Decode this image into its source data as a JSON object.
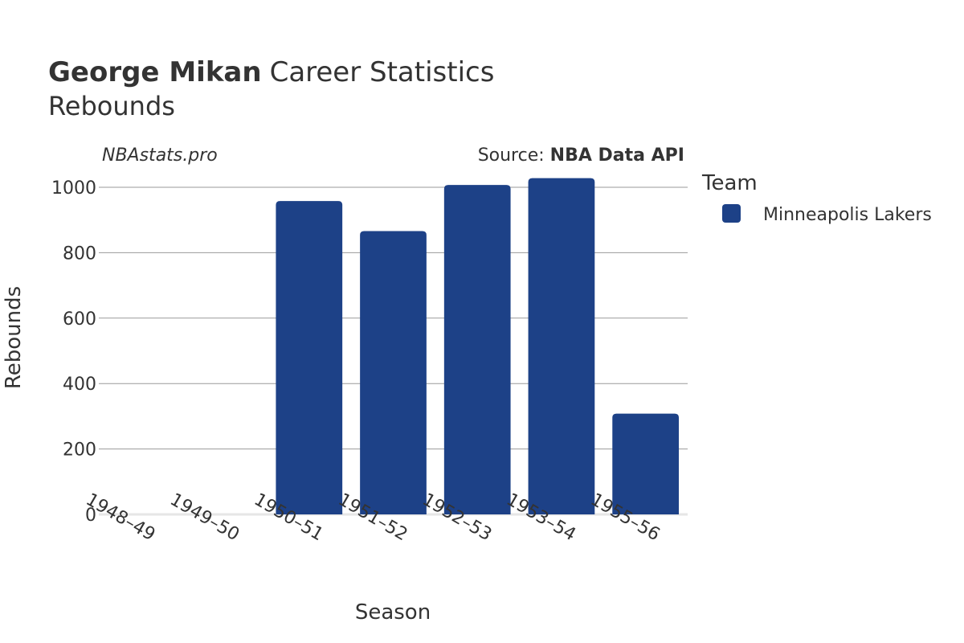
{
  "title": {
    "player": "George Mikan",
    "rest": "Career Statistics"
  },
  "subtitle": "Rebounds",
  "watermark": "NBAstats.pro",
  "source": {
    "prefix": "Source: ",
    "name": "NBA Data API"
  },
  "legend": {
    "title": "Team",
    "items": [
      {
        "label": "Minneapolis Lakers",
        "color": "#1d4187"
      }
    ]
  },
  "chart_data": {
    "type": "bar",
    "categories": [
      "1948–49",
      "1949–50",
      "1950–51",
      "1951–52",
      "1952–53",
      "1953–54",
      "1955–56"
    ],
    "series": [
      {
        "name": "Minneapolis Lakers",
        "color": "#1d4187",
        "values": [
          null,
          null,
          958,
          866,
          1007,
          1028,
          308
        ]
      }
    ],
    "xlabel": "Season",
    "ylabel": "Rebounds",
    "ylim": [
      0,
      1000
    ],
    "yticks": [
      0,
      200,
      400,
      600,
      800,
      1000
    ],
    "grid": true,
    "legend_position": "right"
  }
}
